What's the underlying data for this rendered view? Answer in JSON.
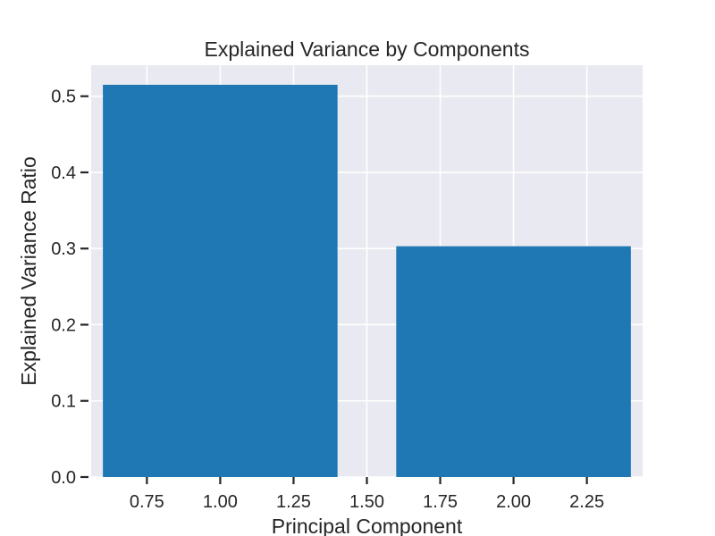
{
  "chart_data": {
    "type": "bar",
    "title": "Explained Variance by Components",
    "xlabel": "Principal Component",
    "ylabel": "Explained Variance Ratio",
    "x": [
      1,
      2
    ],
    "values": [
      0.515,
      0.303
    ],
    "bar_width": 0.8,
    "xlim": [
      0.56,
      2.44
    ],
    "ylim": [
      0.0,
      0.5407
    ],
    "xticks": [
      0.75,
      1.0,
      1.25,
      1.5,
      1.75,
      2.0,
      2.25
    ],
    "xtick_labels": [
      "0.75",
      "1.00",
      "1.25",
      "1.50",
      "1.75",
      "2.00",
      "2.25"
    ],
    "yticks": [
      0.0,
      0.1,
      0.2,
      0.3,
      0.4,
      0.5
    ],
    "ytick_labels": [
      "0.0",
      "0.1",
      "0.2",
      "0.3",
      "0.4",
      "0.5"
    ],
    "grid": true,
    "colors": {
      "bar": "#1f77b4",
      "plot_background": "#e9e9f1",
      "grid": "#ffffff",
      "tick": "#262626"
    }
  }
}
